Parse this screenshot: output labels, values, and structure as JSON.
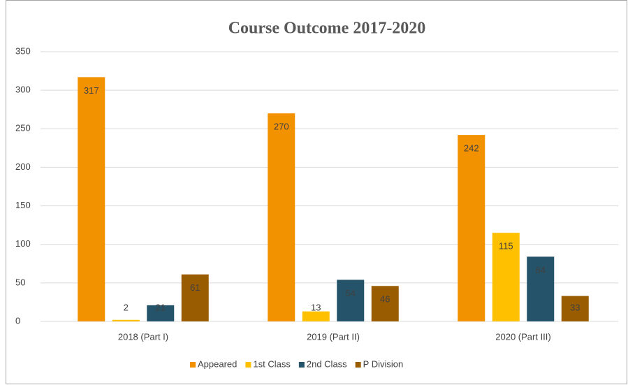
{
  "chart_data": {
    "type": "bar",
    "title": "Course Outcome 2017-2020",
    "categories": [
      "2018 (Part I)",
      "2019 (Part II)",
      "2020 (Part III)"
    ],
    "series": [
      {
        "name": "Appeared",
        "color": "#f39200",
        "values": [
          317,
          270,
          242
        ]
      },
      {
        "name": "1st Class",
        "color": "#ffc000",
        "values": [
          2,
          13,
          115
        ]
      },
      {
        "name": "2nd Class",
        "color": "#255369",
        "values": [
          21,
          54,
          84
        ]
      },
      {
        "name": "P Division",
        "color": "#9a5c00",
        "values": [
          61,
          46,
          33
        ]
      }
    ],
    "ylim": [
      0,
      350
    ],
    "yticks": [
      0,
      50,
      100,
      150,
      200,
      250,
      300,
      350
    ],
    "grid": true,
    "legend": "bottom"
  }
}
